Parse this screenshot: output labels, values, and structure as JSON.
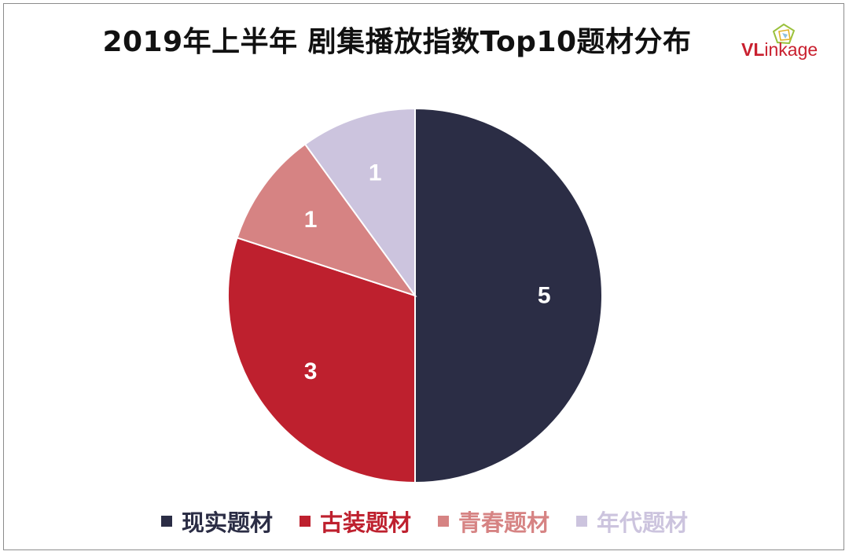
{
  "title": "2019年上半年 剧集播放指数Top10题材分布",
  "logo": {
    "v": "V",
    "l": "L",
    "rest": "inkage"
  },
  "colors": {
    "realistic": "#2b2d45",
    "costume": "#be202e",
    "youth": "#d68383",
    "period": "#ccc4de"
  },
  "chart_data": {
    "type": "pie",
    "title": "2019年上半年 剧集播放指数Top10题材分布",
    "legend_position": "bottom",
    "slices": [
      {
        "name": "现实题材",
        "value": 5,
        "label": "5",
        "color": "#2b2d45"
      },
      {
        "name": "古装题材",
        "value": 3,
        "label": "3",
        "color": "#be202e"
      },
      {
        "name": "青春题材",
        "value": 1,
        "label": "1",
        "color": "#d68383"
      },
      {
        "name": "年代题材",
        "value": 1,
        "label": "1",
        "color": "#ccc4de"
      }
    ]
  }
}
